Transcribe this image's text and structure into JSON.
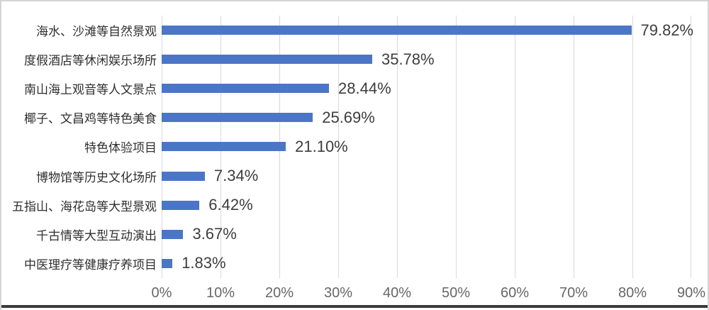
{
  "chart_data": {
    "type": "bar",
    "orientation": "horizontal",
    "title": "",
    "categories": [
      "海水、沙滩等自然景观",
      "度假酒店等休闲娱乐场所",
      "南山海上观音等人文景点",
      "椰子、文昌鸡等特色美食",
      "特色体验项目",
      "博物馆等历史文化场所",
      "五指山、海花岛等大型景观",
      "千古情等大型互动演出",
      "中医理疗等健康疗养项目"
    ],
    "values": [
      79.82,
      35.78,
      28.44,
      25.69,
      21.1,
      7.34,
      6.42,
      3.67,
      1.83
    ],
    "value_labels": [
      "79.82%",
      "35.78%",
      "28.44%",
      "25.69%",
      "21.10%",
      "7.34%",
      "6.42%",
      "3.67%",
      "1.83%"
    ],
    "xlim": [
      0,
      90
    ],
    "x_tick_labels": [
      "0%",
      "10%",
      "20%",
      "30%",
      "40%",
      "50%",
      "60%",
      "70%",
      "80%",
      "90%"
    ],
    "grid": "vertical-only",
    "legend": "none",
    "colors": {
      "bar": "#4b76c7",
      "gridline": "#d9d9d9",
      "tick_text": "#666666",
      "value_text": "#3d3d3d",
      "category_text": "#2f2f2f",
      "frame_border": "#d4d4d4",
      "bottom_edge": "#3b3b3b",
      "background": "#ffffff"
    }
  }
}
